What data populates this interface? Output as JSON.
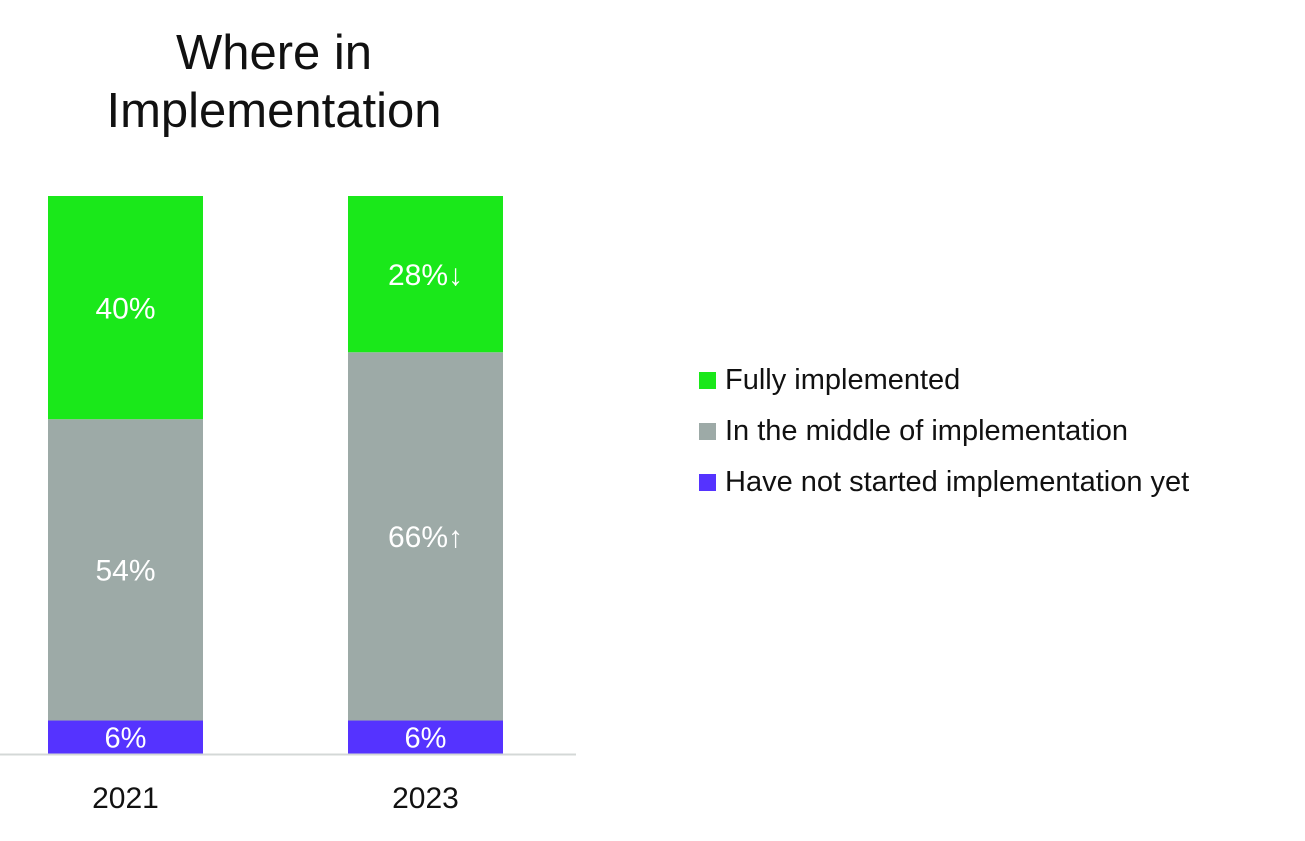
{
  "title_lines": [
    "Where in",
    "Implementation"
  ],
  "legend": [
    {
      "label": "Fully implemented",
      "color": "#1ae81a"
    },
    {
      "label": "In the middle of implementation",
      "color": "#9daaa7"
    },
    {
      "label": "Have not started implementation yet",
      "color": "#5533ff"
    }
  ],
  "chart_data": {
    "type": "bar",
    "stacked": true,
    "title": "Where in Implementation",
    "categories": [
      "2021",
      "2023"
    ],
    "series": [
      {
        "name": "Have not started implementation yet",
        "color": "#5533ff",
        "values": [
          6,
          6
        ],
        "labels": [
          "6%",
          "6%"
        ]
      },
      {
        "name": "In the middle of implementation",
        "color": "#9daaa7",
        "values": [
          54,
          66
        ],
        "labels": [
          "54%",
          "66%↑"
        ]
      },
      {
        "name": "Fully implemented",
        "color": "#1ae81a",
        "values": [
          40,
          28
        ],
        "labels": [
          "40%",
          "28%↓"
        ]
      }
    ],
    "xlabel": "",
    "ylabel": "",
    "ylim": [
      0,
      100
    ],
    "grid": false,
    "legend_position": "right"
  }
}
